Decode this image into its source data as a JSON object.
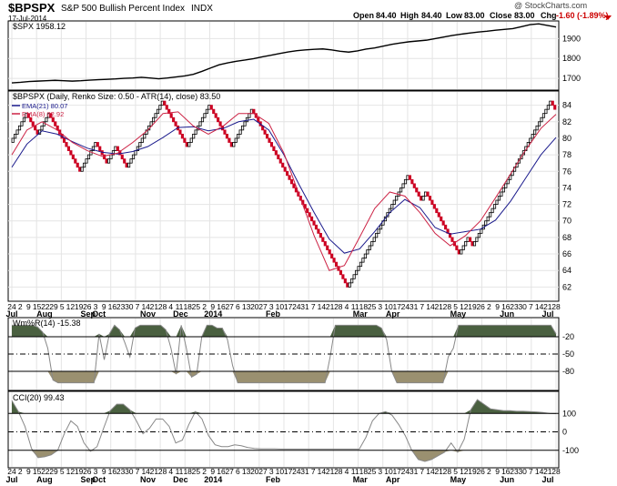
{
  "header": {
    "symbol": "$BPSPX",
    "description": "S&P 500 Bullish Percent Index",
    "exchange": "INDX",
    "date": "17-Jul-2014",
    "open_label": "Open",
    "open": "84.40",
    "high_label": "High",
    "high": "84.40",
    "low_label": "Low",
    "low": "83.00",
    "close_label": "Close",
    "close": "83.00",
    "chg_label": "Chg",
    "chg": "-1.60 (-1.89%)",
    "watermark": "@ StockCharts.com",
    "colors": {
      "negative": "#cc0000"
    }
  },
  "chart_data": [
    {
      "type": "line",
      "panel": "spx",
      "legend": "$SPX 1958.12",
      "y_ticks": [
        1700,
        1800,
        1900
      ],
      "ylim": [
        1650,
        1975
      ],
      "series": [
        {
          "name": "$SPX",
          "color": "#000000",
          "values": [
            1677,
            1680,
            1684,
            1686,
            1688,
            1690,
            1688,
            1686,
            1688,
            1691,
            1693,
            1695,
            1697,
            1700,
            1702,
            1705,
            1702,
            1698,
            1702,
            1707,
            1712,
            1720,
            1735,
            1752,
            1768,
            1778,
            1786,
            1792,
            1799,
            1808,
            1816,
            1825,
            1833,
            1839,
            1843,
            1846,
            1848,
            1843,
            1836,
            1832,
            1838,
            1847,
            1853,
            1862,
            1871,
            1878,
            1884,
            1888,
            1892,
            1900,
            1908,
            1916,
            1922,
            1928,
            1933,
            1937,
            1942,
            1946,
            1950,
            1960,
            1970,
            1974,
            1966,
            1958
          ]
        }
      ]
    },
    {
      "type": "line",
      "panel": "renko",
      "legend": "$BPSPX (Daily, Renko Size: 0.50 - ATR(14), close) 83.50",
      "ema21_label": "EMA(21) 80.07",
      "ema8_label": "EMA(8) 82.92",
      "y_ticks": [
        62,
        64,
        66,
        68,
        70,
        72,
        74,
        76,
        78,
        80,
        82,
        84
      ],
      "ylim": [
        60.5,
        85.5
      ],
      "brick_size": 0.5,
      "colors": {
        "up": "#000000",
        "down": "#cc0022",
        "ema21": "#1a1a8c",
        "ema8": "#cc2244"
      },
      "series": [
        {
          "name": "$BPSPX",
          "path": [
            79.5,
            83,
            80.5,
            83,
            76,
            79.5,
            77,
            79,
            76.5,
            78.5,
            84.5,
            79,
            82,
            84,
            79,
            83.5,
            83,
            62,
            75.5,
            72.5,
            73.5,
            66,
            68,
            67,
            84.5,
            83.5
          ]
        },
        {
          "name": "EMA(21)",
          "values": [
            76.5,
            79.3,
            80.9,
            80.5,
            79.6,
            78.8,
            78.3,
            78.1,
            78.4,
            79.0,
            80.1,
            81.3,
            81.4,
            80.9,
            81.2,
            82.0,
            82.3,
            81.0,
            78.0,
            74.4,
            71.0,
            67.8,
            66.1,
            66.6,
            68.7,
            71.0,
            72.6,
            71.6,
            69.2,
            68.4,
            68.7,
            69.0,
            70.1,
            72.4,
            75.2,
            78.0,
            80.1
          ]
        },
        {
          "name": "EMA(8)",
          "values": [
            78.0,
            81.0,
            82.0,
            81.0,
            79.5,
            78.5,
            77.8,
            78.2,
            79.5,
            81.0,
            83.0,
            83.2,
            81.5,
            80.5,
            81.5,
            83.0,
            83.0,
            81.8,
            78.2,
            73.2,
            68.2,
            64.0,
            64.6,
            68.0,
            71.5,
            73.5,
            73.0,
            71.0,
            68.5,
            67.0,
            68.2,
            70.0,
            72.8,
            75.7,
            78.6,
            81.2,
            82.9
          ]
        }
      ]
    },
    {
      "type": "area",
      "panel": "williams",
      "legend": "Wm%R(14) -15.38",
      "y_ticks": [
        -20,
        -50,
        -80
      ],
      "tick_labels": [
        "-20",
        "-50",
        "-80"
      ],
      "ylim": [
        -110,
        10
      ],
      "colors": {
        "fill": "#4a6040",
        "line": "#888888"
      },
      "series": [
        {
          "name": "Wm%R(14)",
          "values": [
            0,
            0,
            0,
            0,
            0,
            -3,
            -12,
            -40,
            -95,
            -100,
            -100,
            -100,
            -100,
            -100,
            -100,
            -100,
            -100,
            -15,
            -60,
            -15,
            0,
            -8,
            -30,
            -55,
            -5,
            0,
            0,
            0,
            0,
            0,
            -8,
            -40,
            -85,
            0,
            -40,
            -90,
            -85,
            -20,
            0,
            0,
            -5,
            -5,
            -25,
            -70,
            -100,
            -100,
            -100,
            -100,
            -100,
            -100,
            -100,
            -100,
            -100,
            -100,
            -100,
            -100,
            -100,
            -100,
            -100,
            -100,
            -100,
            -100,
            -55,
            0,
            0,
            0,
            0,
            0,
            0,
            0,
            0,
            0,
            -5,
            -25,
            -80,
            -100,
            -100,
            -100,
            -100,
            -100,
            -100,
            -100,
            -100,
            -100,
            -100,
            -55,
            -40,
            0,
            0,
            0,
            0,
            0,
            0,
            0,
            0,
            0,
            0,
            0,
            0,
            0,
            0,
            0,
            0,
            0,
            0,
            0,
            -15
          ]
        }
      ]
    },
    {
      "type": "area",
      "panel": "cci",
      "legend": "CCI(20) 99.43",
      "y_ticks": [
        100,
        0,
        -100
      ],
      "tick_labels": [
        "100",
        "0",
        "-100"
      ],
      "ylim": [
        -185,
        210
      ],
      "colors": {
        "fill": "#4a6040",
        "line": "#888888"
      },
      "series": [
        {
          "name": "CCI(20)",
          "values": [
            170,
            110,
            30,
            -90,
            -140,
            -135,
            -125,
            -100,
            -10,
            60,
            30,
            -60,
            -105,
            -80,
            20,
            115,
            150,
            150,
            120,
            60,
            -10,
            20,
            70,
            70,
            30,
            -60,
            -45,
            40,
            110,
            70,
            -20,
            -70,
            -80,
            -80,
            -70,
            -75,
            -85,
            -90,
            -92,
            -92,
            -92,
            -93,
            -93,
            -93,
            -93,
            -93,
            -93,
            -93,
            -93,
            -93,
            -93,
            -93,
            -93,
            -93,
            -30,
            60,
            100,
            110,
            90,
            40,
            -20,
            -100,
            -150,
            -160,
            -150,
            -130,
            -110,
            -60,
            -110,
            -40,
            120,
            175,
            150,
            125,
            120,
            115,
            115,
            112,
            112,
            110,
            108,
            105,
            100,
            99
          ]
        }
      ]
    }
  ],
  "x_axis": {
    "top_labels": [
      "24",
      "2",
      "9",
      "15",
      "22",
      "29",
      "5",
      "12",
      "19",
      "26",
      "3",
      "9",
      "16",
      "23",
      "30",
      "7",
      "14",
      "21",
      "28",
      "4",
      "11",
      "18",
      "25",
      "2",
      "9",
      "16",
      "27",
      "6",
      "13",
      "20",
      "27",
      "3",
      "10",
      "17",
      "24",
      "31",
      "7",
      "14",
      "21",
      "28",
      "4",
      "11",
      "18",
      "25",
      "3",
      "10",
      "17",
      "24",
      "31",
      "7",
      "14",
      "21",
      "28",
      "5",
      "12",
      "19",
      "26",
      "2",
      "9",
      "16",
      "23",
      "30",
      "7",
      "14",
      "21",
      "28"
    ],
    "bottom_labels": [
      "Jul",
      "Aug",
      "Sep",
      "Oct",
      "Nov",
      "Dec",
      "2014",
      "Feb",
      "Mar",
      "Apr",
      "May",
      "Jun",
      "Jul"
    ],
    "bottom_labels_2": [
      "Jul",
      "Aug",
      "Sep",
      "Oct",
      "Nov",
      "Dec",
      "2014",
      "Feb",
      "Mar",
      "Apr",
      "May",
      "Jun",
      "Jul"
    ]
  }
}
